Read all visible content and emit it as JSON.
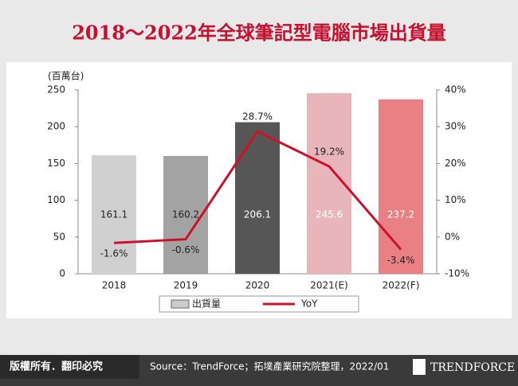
{
  "chart_data": {
    "type": "bar-line",
    "title": "2018～2022年全球筆記型電腦市場出貨量",
    "y_label": "(百萬台)",
    "categories": [
      "2018",
      "2019",
      "2020",
      "2021(E)",
      "2022(F)"
    ],
    "series": [
      {
        "name": "出貨量",
        "type": "bar",
        "color": "#cccccc",
        "colors": [
          "#d0d0d0",
          "#a3a3a3",
          "#565656",
          "#e8b6ba",
          "#e98084"
        ],
        "values": [
          161.1,
          160.2,
          206.1,
          245.6,
          237.2
        ]
      },
      {
        "name": "YoY",
        "type": "line",
        "axis": "y2",
        "color": "#d0102a",
        "values": [
          -1.6,
          -0.6,
          28.7,
          19.2,
          -3.4
        ],
        "value_labels": [
          "-1.6%",
          "-0.6%",
          "28.7%",
          "19.2%",
          "-3.4%"
        ]
      }
    ],
    "ylim": [
      0,
      250
    ],
    "yticks": [
      0,
      50,
      100,
      150,
      200,
      250
    ],
    "y2lim": [
      -10,
      40
    ],
    "y2ticks": [
      {
        "value": -10,
        "label": "-10%"
      },
      {
        "value": 0,
        "label": "0%"
      },
      {
        "value": 10,
        "label": "10%"
      },
      {
        "value": 20,
        "label": "20%"
      },
      {
        "value": 30,
        "label": "30%"
      },
      {
        "value": 40,
        "label": "40%"
      }
    ]
  },
  "footer": {
    "copyright": "版權所有．翻印必究",
    "source": "Source：TrendForce；拓墣產業研究院整理，2022/01",
    "logo": "TRENDFORCE"
  }
}
